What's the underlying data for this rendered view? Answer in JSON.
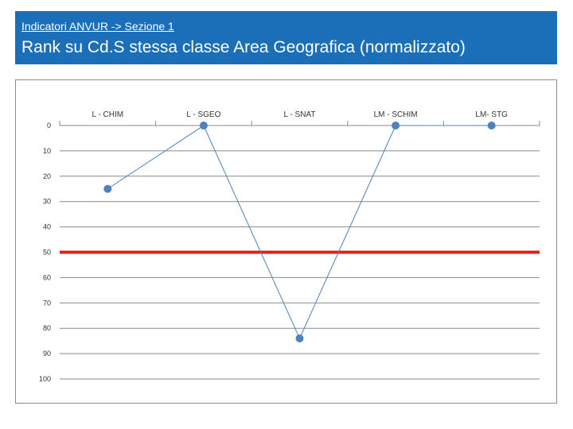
{
  "header": {
    "subtitle": "Indicatori ANVUR -> Sezione 1",
    "title": "Rank su Cd.S stessa classe Area Geografica (normalizzato)"
  },
  "colors": {
    "header_bg": "#1b6fb9",
    "series": "#4f81bd",
    "threshold": "#e0201b",
    "grid": "#8a8a8a"
  },
  "chart_data": {
    "type": "line",
    "title": "",
    "xlabel": "",
    "ylabel": "",
    "categories": [
      "L - CHIM",
      "L - SGEO",
      "L - SNAT",
      "LM - SCHIM",
      "LM- STG"
    ],
    "series": [
      {
        "values": [
          25,
          0,
          84,
          0,
          0
        ]
      }
    ],
    "threshold": 50,
    "ylim": [
      0,
      100
    ],
    "y_reversed": true,
    "y_ticks": [
      0,
      10,
      20,
      30,
      40,
      50,
      60,
      70,
      80,
      90,
      100
    ],
    "x_axis_position": "top",
    "grid": true,
    "legend": "none"
  }
}
